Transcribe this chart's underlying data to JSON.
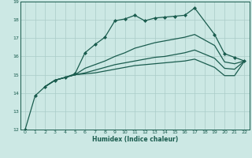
{
  "title": "",
  "xlabel": "Humidex (Indice chaleur)",
  "xlim": [
    -0.5,
    22.5
  ],
  "ylim": [
    12,
    19
  ],
  "yticks": [
    12,
    13,
    14,
    15,
    16,
    17,
    18,
    19
  ],
  "xticks": [
    0,
    1,
    2,
    3,
    4,
    5,
    6,
    7,
    8,
    9,
    10,
    11,
    12,
    13,
    14,
    15,
    16,
    17,
    18,
    19,
    20,
    21,
    22
  ],
  "background_color": "#cce8e4",
  "grid_color": "#aaccc8",
  "line_color": "#1a5c4e",
  "line1_x": [
    0,
    1,
    2,
    3,
    4,
    5,
    6,
    7,
    8,
    9,
    10,
    11,
    12,
    13,
    14,
    15,
    16,
    17,
    19,
    20,
    21,
    22
  ],
  "line1_y": [
    12.0,
    13.85,
    14.35,
    14.7,
    14.85,
    15.05,
    16.2,
    16.65,
    17.05,
    17.95,
    18.05,
    18.25,
    17.95,
    18.1,
    18.15,
    18.2,
    18.25,
    18.65,
    17.2,
    16.15,
    15.95,
    15.75
  ],
  "line2_x": [
    2,
    3,
    4,
    5,
    6,
    7,
    8,
    9,
    10,
    11,
    12,
    13,
    14,
    15,
    16,
    17,
    19,
    20,
    21,
    22
  ],
  "line2_y": [
    14.35,
    14.7,
    14.85,
    15.0,
    15.35,
    15.55,
    15.75,
    16.0,
    16.2,
    16.45,
    16.6,
    16.75,
    16.85,
    16.95,
    17.05,
    17.2,
    16.6,
    15.7,
    15.6,
    15.75
  ],
  "line3_x": [
    2,
    3,
    4,
    5,
    6,
    7,
    8,
    9,
    10,
    11,
    12,
    13,
    14,
    15,
    16,
    17,
    19,
    20,
    21,
    22
  ],
  "line3_y": [
    14.35,
    14.7,
    14.85,
    15.0,
    15.1,
    15.25,
    15.4,
    15.55,
    15.65,
    15.75,
    15.85,
    15.95,
    16.0,
    16.1,
    16.2,
    16.35,
    15.9,
    15.35,
    15.3,
    15.75
  ],
  "line4_x": [
    2,
    3,
    4,
    5,
    6,
    7,
    8,
    9,
    10,
    11,
    12,
    13,
    14,
    15,
    16,
    17,
    19,
    20,
    21,
    22
  ],
  "line4_y": [
    14.35,
    14.7,
    14.85,
    15.0,
    15.05,
    15.1,
    15.2,
    15.3,
    15.4,
    15.5,
    15.55,
    15.6,
    15.65,
    15.7,
    15.75,
    15.85,
    15.4,
    14.95,
    14.95,
    15.75
  ]
}
